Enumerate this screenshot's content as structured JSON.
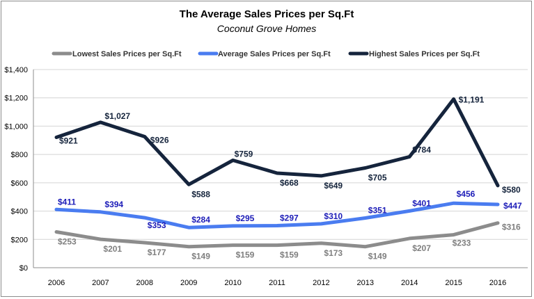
{
  "chart_data": {
    "type": "line",
    "title": "The Average Sales Prices per Sq.Ft",
    "subtitle": "Coconut Grove Homes",
    "xlabel": "",
    "ylabel": "",
    "categories": [
      "2006",
      "2007",
      "2008",
      "2009",
      "2010",
      "2011",
      "2012",
      "2013",
      "2014",
      "2015",
      "2016"
    ],
    "ylim": [
      0,
      1400
    ],
    "y_ticks": [
      0,
      200,
      400,
      600,
      800,
      1000,
      1200,
      1400
    ],
    "y_tick_labels": [
      "$0",
      "$200",
      "$400",
      "$600",
      "$800",
      "$1,000",
      "$1,200",
      "$1,400"
    ],
    "grid": true,
    "legend_position": "top",
    "series": [
      {
        "name": "Lowest Sales Prices per Sq.Ft",
        "color": "#8c8c8c",
        "label_color": "#7f7f7f",
        "values": [
          253,
          201,
          177,
          149,
          159,
          159,
          173,
          149,
          207,
          233,
          316
        ],
        "labels": [
          "$253",
          "$201",
          "$177",
          "$149",
          "$159",
          "$159",
          "$173",
          "$149",
          "$207",
          "$233",
          "$316"
        ]
      },
      {
        "name": "Average Sales Prices per Sq.Ft",
        "color": "#4a7cf0",
        "label_color": "#1c1cb8",
        "values": [
          411,
          394,
          353,
          284,
          295,
          297,
          310,
          351,
          401,
          456,
          447
        ],
        "labels": [
          "$411",
          "$394",
          "$353",
          "$284",
          "$295",
          "$297",
          "$310",
          "$351",
          "$401",
          "$456",
          "$447"
        ]
      },
      {
        "name": "Highest Sales Prices per Sq.Ft",
        "color": "#15243c",
        "label_color": "#15243c",
        "values": [
          921,
          1027,
          926,
          588,
          759,
          668,
          649,
          705,
          784,
          1191,
          580
        ],
        "labels": [
          "$921",
          "$1,027",
          "$926",
          "$588",
          "$759",
          "$668",
          "$649",
          "$705",
          "$784",
          "$1,191",
          "$580"
        ]
      }
    ]
  }
}
